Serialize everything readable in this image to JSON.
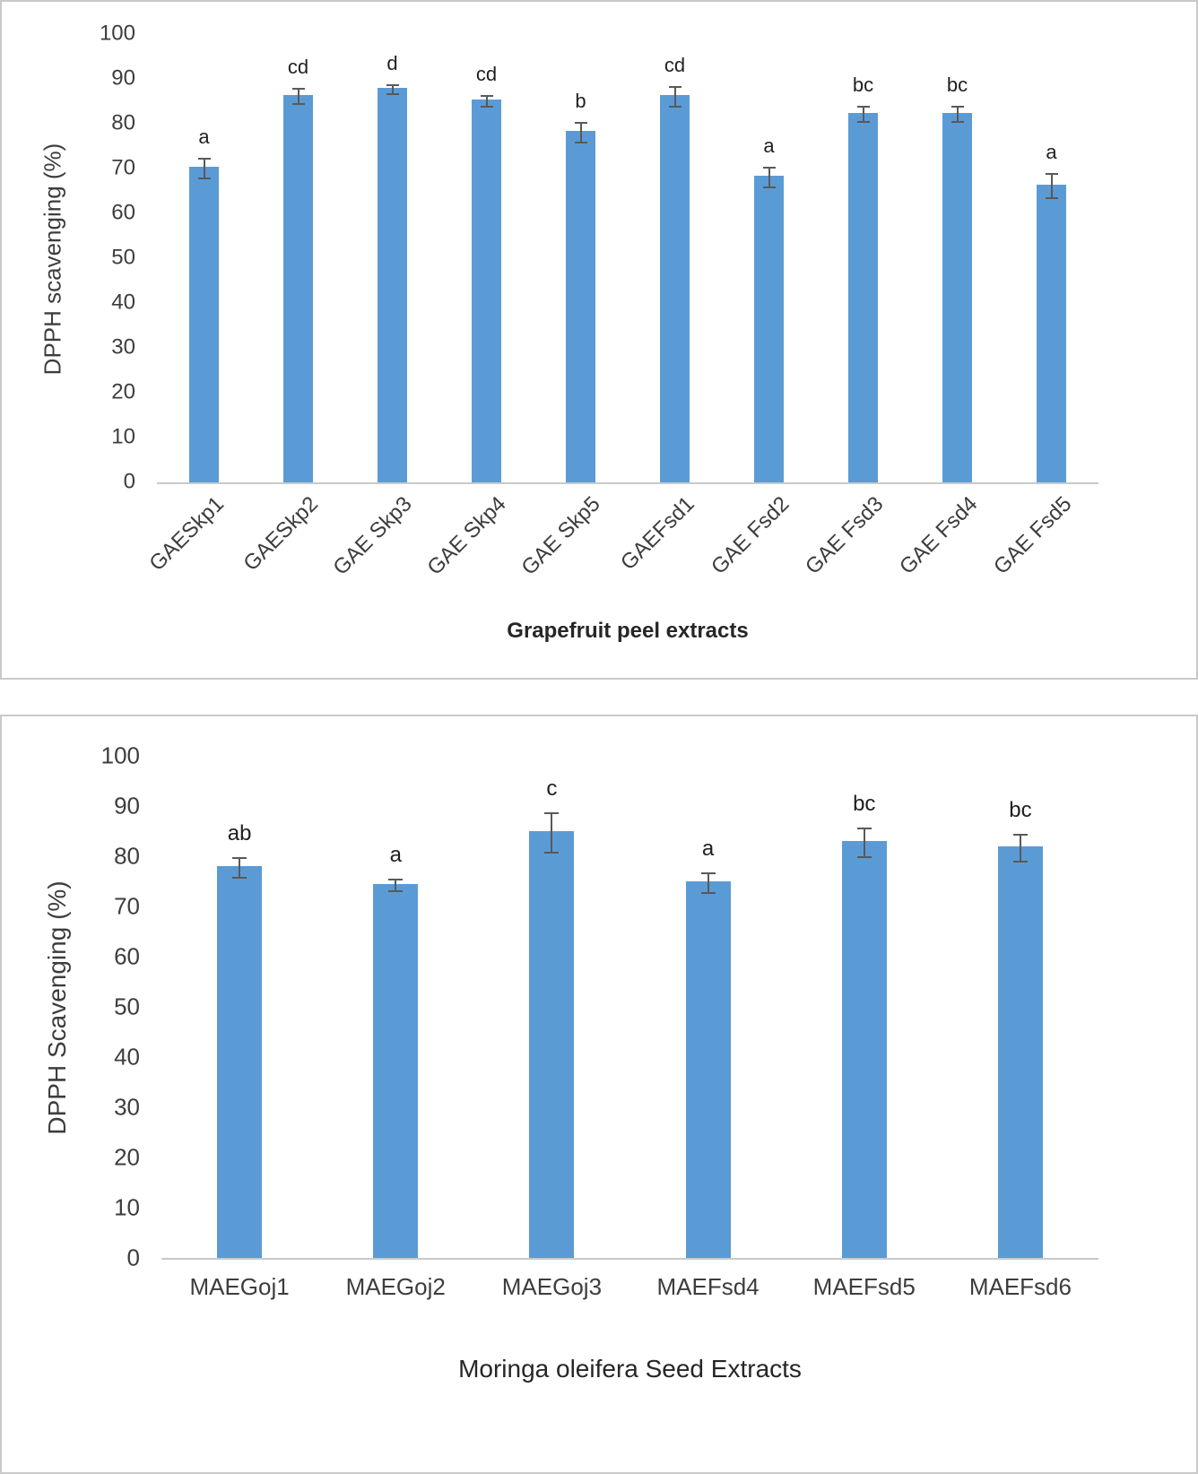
{
  "chart_data": [
    {
      "type": "bar",
      "title": "",
      "ylabel": "DPPH scavenging (%)",
      "xlabel": "Grapefruit peel extracts",
      "ylim": [
        0,
        100
      ],
      "ytick_step": 10,
      "grid": false,
      "legend": "none",
      "bar_color": "#5B9BD5",
      "error_bar_color": "#595959",
      "x_label_rotation": -45,
      "categories": [
        "GAESkp1",
        "GAESkp2",
        "GAE Skp3",
        "GAE Skp4",
        "GAE Skp5",
        "GAEFsd1",
        "GAE Fsd2",
        "GAE Fsd3",
        "GAE Fsd4",
        "GAE Fsd5"
      ],
      "values": [
        70.5,
        86.5,
        88,
        85.5,
        78.5,
        86.5,
        68.5,
        82.5,
        82.5,
        66.5
      ],
      "errors": [
        2,
        1.5,
        0.8,
        1,
        2,
        2,
        2,
        1.5,
        1.5,
        2.5
      ],
      "sig_letters": [
        "a",
        "cd",
        "d",
        "cd",
        "b",
        "cd",
        "a",
        "bc",
        "bc",
        "a"
      ]
    },
    {
      "type": "bar",
      "title": "",
      "ylabel": "DPPH Scavenging (%)",
      "xlabel": "Moringa oleifera Seed Extracts",
      "ylim": [
        0,
        100
      ],
      "ytick_step": 10,
      "grid": false,
      "legend": "none",
      "bar_color": "#5B9BD5",
      "error_bar_color": "#595959",
      "x_label_rotation": 0,
      "categories": [
        "MAEGoj1",
        "MAEGoj2",
        "MAEGoj3",
        "MAEFsd4",
        "MAEFsd5",
        "MAEFsd6"
      ],
      "values": [
        78,
        74.5,
        85,
        75,
        83,
        82
      ],
      "errors": [
        1.8,
        1,
        3.8,
        1.8,
        2.7,
        2.5
      ],
      "sig_letters": [
        "ab",
        "a",
        "c",
        "a",
        "bc",
        "bc"
      ]
    }
  ]
}
